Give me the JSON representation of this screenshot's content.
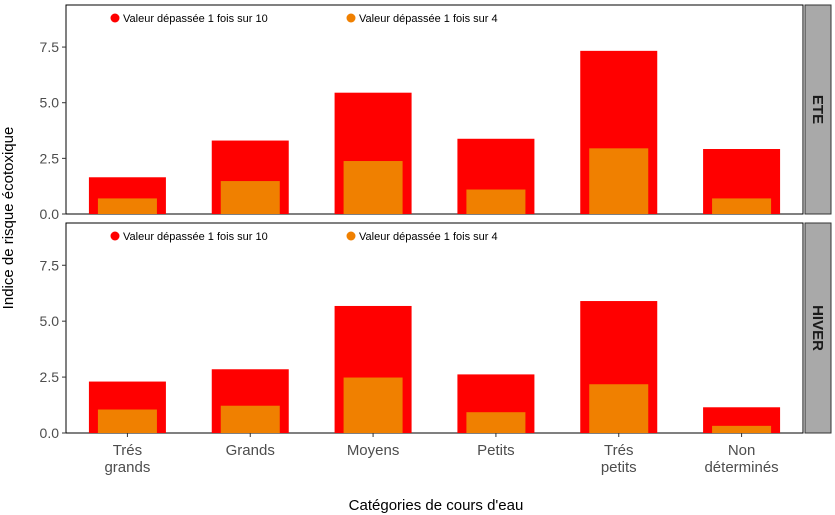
{
  "chart_data": {
    "type": "bar",
    "ylabel": "Indice de risque écotoxique",
    "xlabel": "Catégories de cours d'eau",
    "categories": [
      [
        "Trés",
        "grands"
      ],
      [
        "Grands"
      ],
      [
        "Moyens"
      ],
      [
        "Petits"
      ],
      [
        "Trés",
        "petits"
      ],
      [
        "Non",
        "déterminés"
      ]
    ],
    "ylim": [
      0,
      9.3
    ],
    "yticks": [
      0,
      2.5,
      5,
      7.5
    ],
    "ytick_labels": [
      "0.0",
      "2.5",
      "5.0",
      "7.5"
    ],
    "grid": false,
    "legend": {
      "placement": "top-left",
      "entries": [
        {
          "label": "Valeur dépassée 1 fois sur 10",
          "color": "#ff0000"
        },
        {
          "label": "Valeur dépassée 1 fois sur 4",
          "color": "#f08000"
        }
      ]
    },
    "colors": {
      "p90": "#ff0000",
      "p75": "#f08000",
      "strip": "#a9a9a9"
    },
    "panels": [
      {
        "strip_label": "ETE",
        "series": [
          {
            "values": [
              1.65,
              3.3,
              5.45,
              3.38,
              7.33,
              2.92
            ]
          },
          {
            "values": [
              0.7,
              1.48,
              2.38,
              1.1,
              2.95,
              0.7
            ]
          }
        ]
      },
      {
        "strip_label": "HIVER",
        "series": [
          {
            "values": [
              2.3,
              2.85,
              5.68,
              2.62,
              5.9,
              1.15
            ]
          },
          {
            "values": [
              1.05,
              1.22,
              2.48,
              0.93,
              2.18,
              0.32
            ]
          }
        ]
      }
    ]
  }
}
